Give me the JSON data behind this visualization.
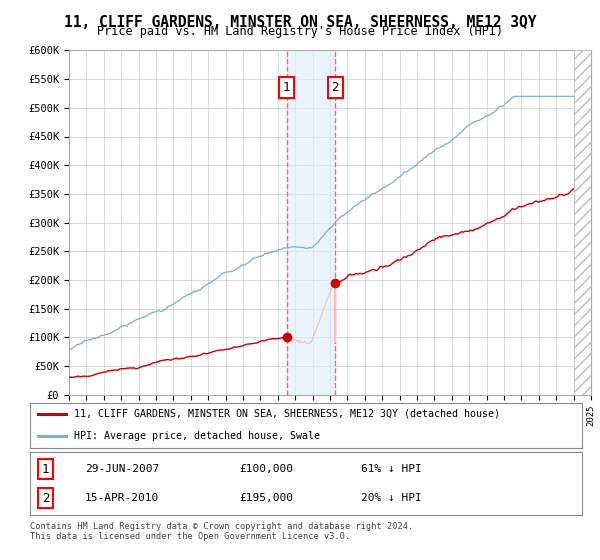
{
  "title": "11, CLIFF GARDENS, MINSTER ON SEA, SHEERNESS, ME12 3QY",
  "subtitle": "Price paid vs. HM Land Registry's House Price Index (HPI)",
  "ylabel_ticks": [
    "£0",
    "£50K",
    "£100K",
    "£150K",
    "£200K",
    "£250K",
    "£300K",
    "£350K",
    "£400K",
    "£450K",
    "£500K",
    "£550K",
    "£600K"
  ],
  "ytick_values": [
    0,
    50000,
    100000,
    150000,
    200000,
    250000,
    300000,
    350000,
    400000,
    450000,
    500000,
    550000,
    600000
  ],
  "xmin": 1995,
  "xmax": 2025,
  "ymin": 0,
  "ymax": 600000,
  "sale1_date": 2007.5,
  "sale1_price": 100000,
  "sale1_label": "1",
  "sale1_text": "29-JUN-2007",
  "sale1_amount": "£100,000",
  "sale1_hpi": "61% ↓ HPI",
  "sale2_date": 2010.29,
  "sale2_price": 195000,
  "sale2_label": "2",
  "sale2_text": "15-APR-2010",
  "sale2_amount": "£195,000",
  "sale2_hpi": "20% ↓ HPI",
  "legend_line1": "11, CLIFF GARDENS, MINSTER ON SEA, SHEERNESS, ME12 3QY (detached house)",
  "legend_line2": "HPI: Average price, detached house, Swale",
  "footnote": "Contains HM Land Registry data © Crown copyright and database right 2024.\nThis data is licensed under the Open Government Licence v3.0.",
  "line_color_property": "#cc0000",
  "line_color_hpi": "#7aadd4",
  "background_color": "#ffffff",
  "grid_color": "#cccccc",
  "shade_color": "#ddeeff"
}
